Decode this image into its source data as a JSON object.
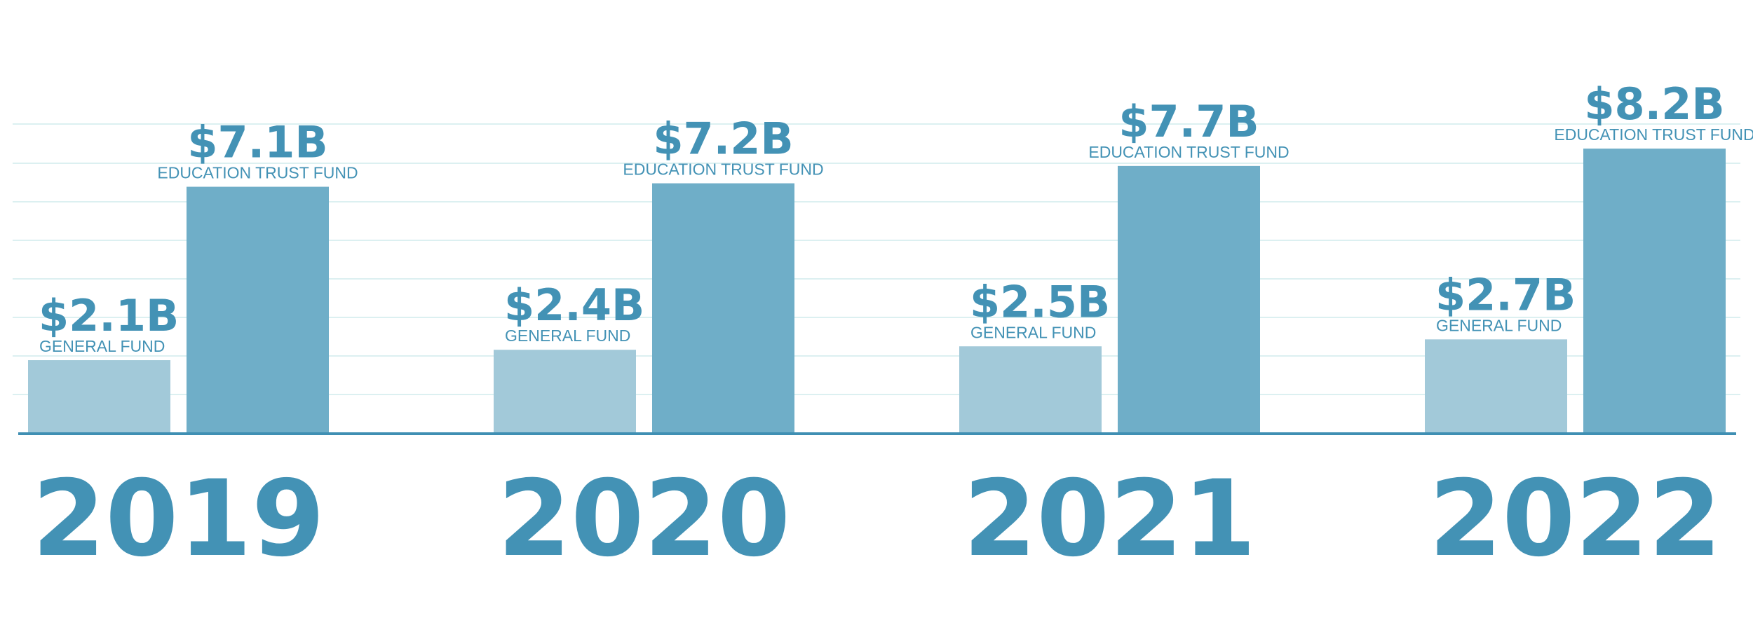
{
  "chart_data": {
    "type": "bar",
    "categories": [
      "2019",
      "2020",
      "2021",
      "2022"
    ],
    "series": [
      {
        "name": "GENERAL FUND",
        "values": [
          2.1,
          2.4,
          2.5,
          2.7
        ],
        "labels": [
          "$2.1B",
          "$2.4B",
          "$2.5B",
          "$2.7B"
        ]
      },
      {
        "name": "EDUCATION TRUST FUND",
        "values": [
          7.1,
          7.2,
          7.7,
          8.2
        ],
        "labels": [
          "$7.1B",
          "$7.2B",
          "$7.7B",
          "$8.2B"
        ]
      }
    ],
    "title": "",
    "xlabel": "",
    "ylabel": "",
    "ylim": [
      0,
      8.2
    ],
    "grid": true,
    "legend": "none"
  },
  "colors": {
    "general_fund_bar": "#a2c9d9",
    "education_trust_bar": "#6faec8",
    "text": "#4392b5",
    "axis": "#3f8fb3",
    "grid": "#dcf0f1"
  }
}
